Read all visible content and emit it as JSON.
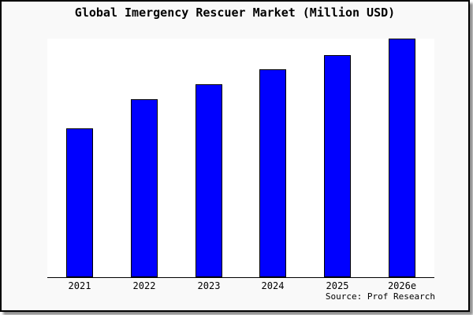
{
  "window": {
    "card_background": "#f9f9f9",
    "plot_background": "#ffffff",
    "border_color": "#000000"
  },
  "source": {
    "label": "Source: Prof Research"
  },
  "chart_data": {
    "type": "bar",
    "title": "Global Imergency Rescuer Market (Million USD)",
    "categories": [
      "2021",
      "2022",
      "2023",
      "2024",
      "2025",
      "2026e"
    ],
    "values": [
      62.5,
      74.5,
      81,
      87,
      93,
      100
    ],
    "value_scale": "percent of tallest bar (2026e); no value axis labels shown",
    "xlabel": "",
    "ylabel": "",
    "ylim": [
      0,
      100
    ],
    "grid": false,
    "legend": false,
    "bar_color": "#0000ff",
    "bar_border_color": "#000000",
    "axis_color": "#000000"
  }
}
